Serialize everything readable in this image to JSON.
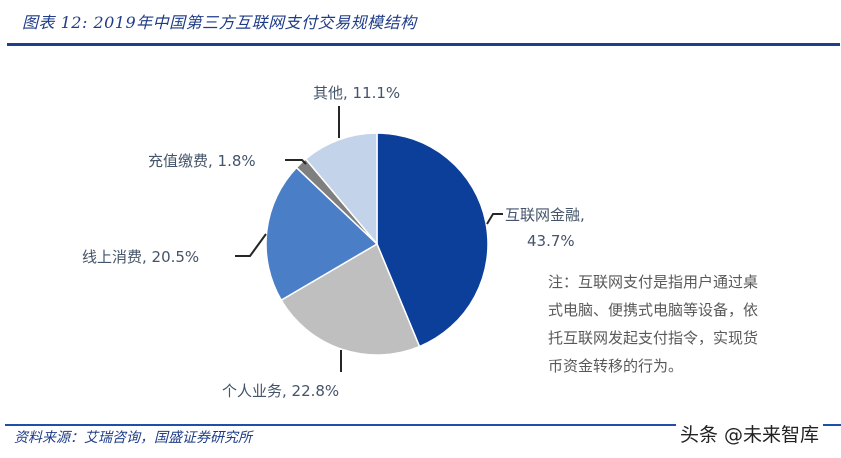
{
  "header": {
    "title": "图表 12:  2019年中国第三方互联网支付交易规模结构"
  },
  "chart_data": {
    "type": "pie",
    "title": "2019年中国第三方互联网支付交易规模结构",
    "figure_label": "图表 12",
    "start_angle_deg": 90,
    "direction": "clockwise",
    "slices": [
      {
        "name": "互联网金融",
        "value": 43.7,
        "label": "互联网金融,",
        "value_label": "43.7%",
        "color": "#0b3f99"
      },
      {
        "name": "个人业务",
        "value": 22.8,
        "label": "个人业务, 22.8%",
        "color": "#bfbfbf"
      },
      {
        "name": "线上消费",
        "value": 20.5,
        "label": "线上消费, 20.5%",
        "color": "#4a7ec7"
      },
      {
        "name": "充值缴费",
        "value": 1.8,
        "label": "充值缴费, 1.8%",
        "color": "#7f7f7f"
      },
      {
        "name": "其他",
        "value": 11.1,
        "label": "其他, 11.1%",
        "color": "#c3d3ea"
      }
    ],
    "legend": "none (data labels with leader lines)"
  },
  "note": {
    "lines": [
      "注：互联网支付是指用户通过桌",
      "式电脑、便携式电脑等设备，依",
      "托互联网发起支付指令，实现货",
      "币资金转移的行为。"
    ]
  },
  "footer": {
    "source": "资料来源：艾瑞咨询，国盛证券研究所",
    "watermark": "头条 @未来智库"
  },
  "colors": {
    "title": "#1f3c88",
    "rule": "#1f3f8a",
    "label_text": "#44546a"
  }
}
